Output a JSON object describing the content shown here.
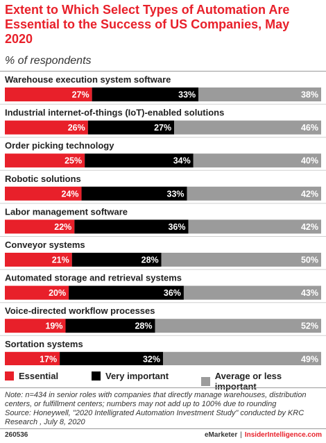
{
  "header": {
    "title": "Extent to Which Select Types of Automation Are Essential to the Success of US Companies, May 2020",
    "subtitle": "% of respondents"
  },
  "colors": {
    "essential": "#e8202a",
    "very_important": "#000000",
    "average_or_less": "#9b9b9b",
    "title": "#e8202a"
  },
  "chart_data": {
    "type": "bar",
    "orientation": "horizontal",
    "stacked": true,
    "unit": "%",
    "categories": [
      "Warehouse execution system software",
      "Industrial internet-of-things (IoT)-enabled solutions",
      "Order picking technology",
      "Robotic solutions",
      "Labor management software",
      "Conveyor systems",
      "Automated storage and retrieval systems",
      "Voice-directed workflow processes",
      "Sortation systems"
    ],
    "series": [
      {
        "name": "Essential",
        "values": [
          27,
          26,
          25,
          24,
          22,
          21,
          20,
          19,
          17
        ]
      },
      {
        "name": "Very important",
        "values": [
          33,
          27,
          34,
          33,
          36,
          28,
          36,
          28,
          32
        ]
      },
      {
        "name": "Average or less important",
        "values": [
          38,
          46,
          40,
          42,
          42,
          50,
          43,
          52,
          49
        ]
      }
    ],
    "legend_position": "bottom",
    "data_labels": true
  },
  "legend": {
    "essential": "Essential",
    "very_important": "Very important",
    "average": "Average or less important"
  },
  "notes": {
    "note": "Note: n=434 in senior roles with companies that directly manage warehouses, distribution centers, or fulfillment centers; numbers may not add up to 100% due to rounding",
    "source": "Source: Honeywell, \"2020 Intelligrated Automation Investment Study\" conducted by KRC Research , July 8, 2020"
  },
  "footer": {
    "chart_id": "260536",
    "brand": "eMarketer",
    "separator": "|",
    "site": "InsiderIntelligence.com"
  }
}
